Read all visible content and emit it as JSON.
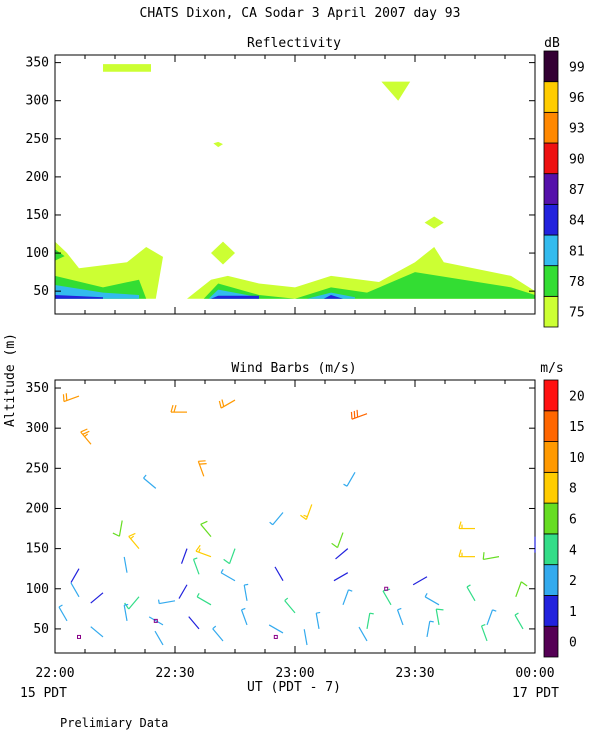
{
  "header": {
    "title": "CHATS Dixon, CA  Sodar    3 April 2007   day  93"
  },
  "footer": {
    "x_axis_label": "UT  (PDT - 7)",
    "left_date": "15 PDT",
    "right_date": "17 PDT",
    "note": "Prelimiary Data"
  },
  "y_axis_label": "Altitude (m)",
  "chart_data": [
    {
      "type": "heatmap",
      "title": "Reflectivity",
      "x_ticks": [
        "22:00",
        "22:30",
        "23:00",
        "23:30",
        "00:00"
      ],
      "x_range_hours": [
        22,
        24
      ],
      "ylim": [
        20,
        360
      ],
      "y_ticks": [
        50,
        100,
        150,
        200,
        250,
        300,
        350
      ],
      "colorbar": {
        "unit": "dB",
        "levels": [
          "75",
          "78",
          "81",
          "84",
          "87",
          "90",
          "93",
          "96",
          "99"
        ],
        "colors": [
          "#ccff33",
          "#33dd33",
          "#33bbee",
          "#2222dd",
          "#5511aa",
          "#ee1111",
          "#ff8800",
          "#ffcc00",
          "#330033"
        ]
      },
      "contours": [
        {
          "level": 75,
          "color": "#ccff33",
          "points": [
            [
              22.0,
              115
            ],
            [
              22.05,
              100
            ],
            [
              22.1,
              80
            ],
            [
              22.3,
              88
            ],
            [
              22.38,
              108
            ],
            [
              22.45,
              95
            ],
            [
              22.42,
              40
            ],
            [
              22.0,
              40
            ]
          ]
        },
        {
          "level": 75,
          "color": "#ccff33",
          "points": [
            [
              22.55,
              40
            ],
            [
              22.65,
              65
            ],
            [
              22.72,
              70
            ],
            [
              22.85,
              60
            ],
            [
              23.0,
              55
            ],
            [
              23.15,
              70
            ],
            [
              23.35,
              62
            ],
            [
              23.5,
              88
            ],
            [
              23.58,
              108
            ],
            [
              23.62,
              88
            ],
            [
              23.9,
              70
            ],
            [
              24.0,
              50
            ],
            [
              24.0,
              40
            ]
          ]
        },
        {
          "level": 75,
          "color": "#ccff33",
          "points": [
            [
              22.65,
              100
            ],
            [
              22.7,
              115
            ],
            [
              22.75,
              100
            ],
            [
              22.7,
              85
            ]
          ]
        },
        {
          "level": 75,
          "color": "#ccff33",
          "points": [
            [
              23.54,
              140
            ],
            [
              23.58,
              148
            ],
            [
              23.62,
              140
            ],
            [
              23.58,
              132
            ]
          ]
        },
        {
          "level": 75,
          "color": "#ccff33",
          "points": [
            [
              23.36,
              325
            ],
            [
              23.48,
              325
            ],
            [
              23.43,
              300
            ]
          ]
        },
        {
          "level": 75,
          "color": "#ccff33",
          "points": [
            [
              22.2,
              348
            ],
            [
              22.4,
              348
            ],
            [
              22.4,
              338
            ],
            [
              22.2,
              338
            ]
          ]
        },
        {
          "level": 75,
          "color": "#ccff33",
          "points": [
            [
              22.66,
              244
            ],
            [
              22.68,
              246
            ],
            [
              22.7,
              243
            ],
            [
              22.68,
              239
            ]
          ]
        },
        {
          "level": 78,
          "color": "#33dd33",
          "points": [
            [
              22.0,
              70
            ],
            [
              22.2,
              55
            ],
            [
              22.35,
              65
            ],
            [
              22.38,
              40
            ],
            [
              22.0,
              40
            ]
          ]
        },
        {
          "level": 78,
          "color": "#33dd33",
          "points": [
            [
              22.62,
              40
            ],
            [
              22.68,
              60
            ],
            [
              22.85,
              45
            ],
            [
              23.0,
              40
            ],
            [
              23.15,
              55
            ],
            [
              23.3,
              48
            ],
            [
              23.5,
              75
            ],
            [
              23.9,
              55
            ],
            [
              24.0,
              45
            ],
            [
              24.0,
              40
            ]
          ]
        },
        {
          "level": 78,
          "color": "#33dd33",
          "points": [
            [
              22.0,
              105
            ],
            [
              22.04,
              96
            ],
            [
              22.0,
              90
            ]
          ]
        },
        {
          "level": 81,
          "color": "#33bbee",
          "points": [
            [
              22.0,
              58
            ],
            [
              22.2,
              48
            ],
            [
              22.35,
              45
            ],
            [
              22.35,
              40
            ],
            [
              22.0,
              40
            ]
          ]
        },
        {
          "level": 81,
          "color": "#33bbee",
          "points": [
            [
              22.64,
              40
            ],
            [
              22.68,
              52
            ],
            [
              22.85,
              42
            ],
            [
              22.85,
              40
            ]
          ]
        },
        {
          "level": 81,
          "color": "#33bbee",
          "points": [
            [
              23.05,
              40
            ],
            [
              23.15,
              48
            ],
            [
              23.25,
              42
            ],
            [
              23.25,
              40
            ]
          ]
        },
        {
          "level": 84,
          "color": "#2222dd",
          "points": [
            [
              22.0,
              45
            ],
            [
              22.2,
              42
            ],
            [
              22.2,
              40
            ],
            [
              22.0,
              40
            ]
          ]
        },
        {
          "level": 84,
          "color": "#2222dd",
          "points": [
            [
              22.65,
              40
            ],
            [
              22.68,
              44
            ],
            [
              22.85,
              44
            ],
            [
              22.85,
              40
            ]
          ]
        },
        {
          "level": 84,
          "color": "#2222dd",
          "points": [
            [
              23.12,
              40
            ],
            [
              23.15,
              45
            ],
            [
              23.2,
              40
            ]
          ]
        }
      ]
    },
    {
      "type": "scatter",
      "title": "Wind Barbs (m/s)",
      "x_ticks": [
        "22:00",
        "22:30",
        "23:00",
        "23:30",
        "00:00"
      ],
      "ylim": [
        20,
        360
      ],
      "y_ticks": [
        50,
        100,
        150,
        200,
        250,
        300,
        350
      ],
      "colorbar": {
        "unit": "m/s",
        "levels": [
          "0",
          "1",
          "2",
          "4",
          "6",
          "8",
          "10",
          "15",
          "20"
        ],
        "colors": [
          "#550055",
          "#2222dd",
          "#33aaee",
          "#33dd88",
          "#66dd22",
          "#ffcc00",
          "#ff9900",
          "#ff6600",
          "#ff1111"
        ]
      },
      "barbs": [
        {
          "t": 22.1,
          "z": 340,
          "dir": 250,
          "spd": 12
        },
        {
          "t": 22.15,
          "z": 280,
          "dir": 320,
          "spd": 13
        },
        {
          "t": 22.55,
          "z": 320,
          "dir": 270,
          "spd": 12
        },
        {
          "t": 22.75,
          "z": 335,
          "dir": 240,
          "spd": 12
        },
        {
          "t": 23.3,
          "z": 318,
          "dir": 250,
          "spd": 16
        },
        {
          "t": 22.62,
          "z": 240,
          "dir": 340,
          "spd": 10
        },
        {
          "t": 22.42,
          "z": 225,
          "dir": 310,
          "spd": 3
        },
        {
          "t": 23.25,
          "z": 245,
          "dir": 210,
          "spd": 3
        },
        {
          "t": 23.07,
          "z": 205,
          "dir": 200,
          "spd": 8
        },
        {
          "t": 22.28,
          "z": 185,
          "dir": 190,
          "spd": 6
        },
        {
          "t": 22.65,
          "z": 165,
          "dir": 320,
          "spd": 6
        },
        {
          "t": 22.95,
          "z": 195,
          "dir": 220,
          "spd": 3
        },
        {
          "t": 23.2,
          "z": 170,
          "dir": 200,
          "spd": 6
        },
        {
          "t": 23.75,
          "z": 175,
          "dir": 270,
          "spd": 9
        },
        {
          "t": 23.75,
          "z": 140,
          "dir": 270,
          "spd": 9
        },
        {
          "t": 24.0,
          "z": 145,
          "dir": 0,
          "spd": 1
        },
        {
          "t": 23.85,
          "z": 140,
          "dir": 260,
          "spd": 6
        },
        {
          "t": 22.35,
          "z": 150,
          "dir": 320,
          "spd": 9
        },
        {
          "t": 22.1,
          "z": 125,
          "dir": 210,
          "spd": 1
        },
        {
          "t": 22.55,
          "z": 150,
          "dir": 200,
          "spd": 1
        },
        {
          "t": 22.65,
          "z": 140,
          "dir": 290,
          "spd": 8
        },
        {
          "t": 22.75,
          "z": 150,
          "dir": 200,
          "spd": 5
        },
        {
          "t": 23.22,
          "z": 150,
          "dir": 230,
          "spd": 1
        },
        {
          "t": 23.22,
          "z": 120,
          "dir": 240,
          "spd": 1
        },
        {
          "t": 23.55,
          "z": 115,
          "dir": 240,
          "spd": 1
        },
        {
          "t": 22.6,
          "z": 118,
          "dir": 340,
          "spd": 4
        },
        {
          "t": 22.3,
          "z": 120,
          "dir": 350,
          "spd": 2
        },
        {
          "t": 22.35,
          "z": 90,
          "dir": 220,
          "spd": 5
        },
        {
          "t": 22.55,
          "z": 105,
          "dir": 210,
          "spd": 1
        },
        {
          "t": 22.75,
          "z": 110,
          "dir": 300,
          "spd": 3
        },
        {
          "t": 22.95,
          "z": 110,
          "dir": 330,
          "spd": 1
        },
        {
          "t": 22.1,
          "z": 90,
          "dir": 330,
          "spd": 2
        },
        {
          "t": 22.2,
          "z": 95,
          "dir": 230,
          "spd": 1
        },
        {
          "t": 22.5,
          "z": 85,
          "dir": 260,
          "spd": 3
        },
        {
          "t": 22.65,
          "z": 80,
          "dir": 300,
          "spd": 4
        },
        {
          "t": 22.8,
          "z": 85,
          "dir": 350,
          "spd": 3
        },
        {
          "t": 23.0,
          "z": 70,
          "dir": 320,
          "spd": 4
        },
        {
          "t": 23.2,
          "z": 80,
          "dir": 20,
          "spd": 3
        },
        {
          "t": 23.4,
          "z": 80,
          "dir": 330,
          "spd": 5
        },
        {
          "t": 23.6,
          "z": 80,
          "dir": 300,
          "spd": 3
        },
        {
          "t": 23.75,
          "z": 85,
          "dir": 330,
          "spd": 4
        },
        {
          "t": 23.92,
          "z": 90,
          "dir": 20,
          "spd": 6
        },
        {
          "t": 22.05,
          "z": 60,
          "dir": 330,
          "spd": 3
        },
        {
          "t": 22.3,
          "z": 60,
          "dir": 350,
          "spd": 3
        },
        {
          "t": 22.45,
          "z": 55,
          "dir": 300,
          "spd": 2
        },
        {
          "t": 22.6,
          "z": 50,
          "dir": 320,
          "spd": 1
        },
        {
          "t": 22.8,
          "z": 55,
          "dir": 340,
          "spd": 3
        },
        {
          "t": 22.95,
          "z": 45,
          "dir": 300,
          "spd": 2
        },
        {
          "t": 23.1,
          "z": 50,
          "dir": 350,
          "spd": 3
        },
        {
          "t": 23.3,
          "z": 50,
          "dir": 10,
          "spd": 4
        },
        {
          "t": 23.45,
          "z": 55,
          "dir": 340,
          "spd": 3
        },
        {
          "t": 23.6,
          "z": 55,
          "dir": 350,
          "spd": 5
        },
        {
          "t": 23.8,
          "z": 55,
          "dir": 20,
          "spd": 3
        },
        {
          "t": 23.95,
          "z": 50,
          "dir": 330,
          "spd": 4
        },
        {
          "t": 22.2,
          "z": 40,
          "dir": 310,
          "spd": 2
        },
        {
          "t": 22.45,
          "z": 30,
          "dir": 330,
          "spd": 2
        },
        {
          "t": 22.7,
          "z": 35,
          "dir": 320,
          "spd": 3
        },
        {
          "t": 23.05,
          "z": 30,
          "dir": 350,
          "spd": 2
        },
        {
          "t": 23.3,
          "z": 35,
          "dir": 330,
          "spd": 2
        },
        {
          "t": 23.55,
          "z": 40,
          "dir": 10,
          "spd": 3
        },
        {
          "t": 23.8,
          "z": 35,
          "dir": 340,
          "spd": 4
        }
      ],
      "calm_markers": [
        {
          "t": 22.1,
          "z": 40
        },
        {
          "t": 22.42,
          "z": 60
        },
        {
          "t": 22.92,
          "z": 40
        },
        {
          "t": 23.38,
          "z": 100
        }
      ]
    }
  ]
}
